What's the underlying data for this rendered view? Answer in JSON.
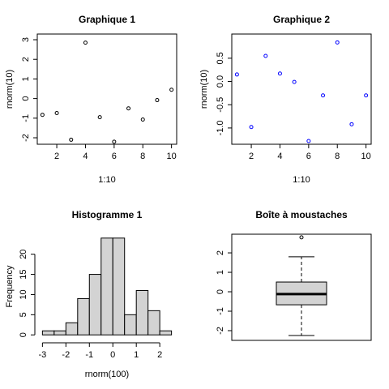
{
  "chart_data": [
    {
      "type": "scatter",
      "title": "Graphique 1",
      "x_label": "1:10",
      "y_label": "rnorm(10)",
      "x": [
        1,
        2,
        3,
        4,
        5,
        6,
        7,
        8,
        9,
        10
      ],
      "values": [
        -0.83,
        -0.74,
        -2.1,
        2.85,
        -0.95,
        -2.2,
        -0.5,
        -1.07,
        -0.08,
        0.45
      ],
      "color": "#000000",
      "xlim": [
        0.64,
        10.36
      ],
      "ylim": [
        -2.33,
        3.29
      ],
      "xticks": [
        2,
        4,
        6,
        8,
        10
      ],
      "yticks": [
        -2,
        -1,
        0,
        1,
        2,
        3
      ]
    },
    {
      "type": "scatter",
      "title": "Graphique 2",
      "x_label": "1:10",
      "y_label": "rnorm(10)",
      "x": [
        1,
        2,
        3,
        4,
        5,
        6,
        7,
        8,
        9,
        10
      ],
      "values": [
        0.15,
        -0.98,
        0.55,
        0.17,
        -0.01,
        -1.28,
        -0.3,
        0.84,
        -0.92,
        -0.3
      ],
      "color": "#0000ff",
      "xlim": [
        0.64,
        10.36
      ],
      "ylim": [
        -1.35,
        1.02
      ],
      "xticks": [
        2,
        4,
        6,
        8,
        10
      ],
      "yticks": [
        {
          "value": -1,
          "label": "-1.0"
        },
        -0.5,
        {
          "value": 0,
          "label": "0.0"
        },
        0.5
      ]
    },
    {
      "type": "histogram",
      "title": "Histogramme 1",
      "x_label": "rnorm(100)",
      "y_label": "Frequency",
      "bins": [
        -3,
        -2.5,
        -2,
        -1.5,
        -1,
        -0.5,
        0,
        0.5,
        1,
        1.5,
        2,
        2.5
      ],
      "values": [
        1,
        1,
        3,
        9,
        15,
        24,
        24,
        5,
        11,
        6,
        1
      ],
      "color": "#d3d3d3",
      "xlim": [
        -3.22,
        2.72
      ],
      "ylim": [
        -0.96,
        24.96
      ],
      "xticks": [
        -3,
        -2,
        -1,
        0,
        1,
        2
      ],
      "yticks": [
        0,
        5,
        10,
        15,
        20
      ]
    },
    {
      "type": "boxplot",
      "title": "Boîte à moustaches",
      "whisker_low": -2.25,
      "q1": -0.67,
      "median": -0.12,
      "q3": 0.5,
      "whisker_high": 1.8,
      "outliers": [
        2.8
      ],
      "color": "#d3d3d3",
      "ylim": [
        -2.5,
        2.96
      ],
      "yticks": [
        -2,
        -1,
        0,
        1,
        2
      ]
    }
  ]
}
